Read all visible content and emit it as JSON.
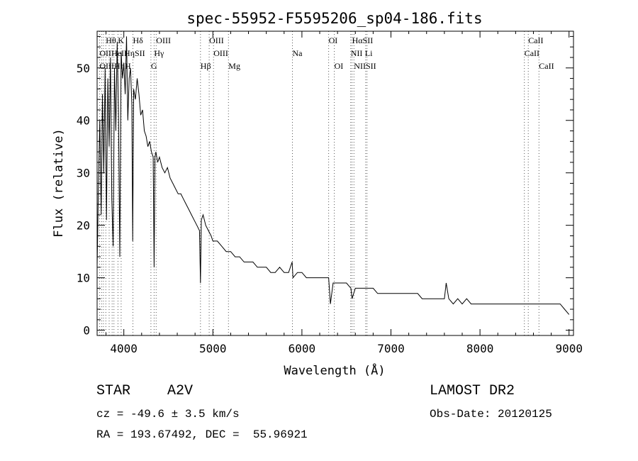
{
  "chart_data": {
    "type": "line",
    "title": "spec-55952-F5595206_sp04-186.fits",
    "xlabel": "Wavelength (Å)",
    "ylabel": "Flux (relative)",
    "xlim": [
      3700,
      9050
    ],
    "ylim": [
      -1,
      57
    ],
    "x_ticks": [
      4000,
      5000,
      6000,
      7000,
      8000,
      9000
    ],
    "y_ticks": [
      0,
      10,
      20,
      30,
      40,
      50
    ],
    "grid": false,
    "legend": "none",
    "line_color": "#000000",
    "series": [
      {
        "x": [
          3700,
          3715,
          3730,
          3745,
          3760,
          3775,
          3790,
          3805,
          3820,
          3835,
          3850,
          3865,
          3880,
          3895,
          3910,
          3925,
          3940,
          3955,
          3970,
          3985,
          4000,
          4015,
          4030,
          4045,
          4060,
          4075,
          4090,
          4100,
          4110,
          4130,
          4150,
          4170,
          4190,
          4210,
          4230,
          4250,
          4270,
          4290,
          4310,
          4330,
          4340,
          4350,
          4360,
          4380,
          4400,
          4430,
          4460,
          4490,
          4520,
          4550,
          4580,
          4610,
          4640,
          4670,
          4700,
          4730,
          4760,
          4790,
          4820,
          4850,
          4861,
          4870,
          4890,
          4920,
          4950,
          4980,
          5000,
          5050,
          5100,
          5150,
          5200,
          5250,
          5300,
          5350,
          5400,
          5450,
          5500,
          5550,
          5600,
          5650,
          5700,
          5750,
          5800,
          5850,
          5890,
          5900,
          5950,
          6000,
          6050,
          6100,
          6150,
          6200,
          6250,
          6300,
          6320,
          6350,
          6400,
          6450,
          6500,
          6550,
          6563,
          6600,
          6650,
          6700,
          6750,
          6800,
          6850,
          6900,
          6950,
          7000,
          7050,
          7100,
          7150,
          7200,
          7250,
          7300,
          7350,
          7400,
          7450,
          7500,
          7550,
          7600,
          7620,
          7650,
          7700,
          7750,
          7800,
          7850,
          7900,
          7950,
          8000,
          8050,
          8100,
          8150,
          8200,
          8250,
          8300,
          8350,
          8400,
          8450,
          8500,
          8550,
          8600,
          8650,
          8700,
          8750,
          8800,
          8850,
          8900,
          8950,
          9000
        ],
        "y": [
          12,
          28,
          40,
          22,
          45,
          30,
          50,
          21,
          48,
          35,
          52,
          25,
          16,
          50,
          38,
          55,
          42,
          14,
          53,
          48,
          51,
          45,
          56,
          40,
          48,
          50,
          43,
          17,
          46,
          44,
          48,
          45,
          41,
          42,
          38,
          37,
          35,
          36,
          34,
          33,
          12,
          33,
          34,
          32,
          33,
          31,
          30,
          31,
          29,
          28,
          27,
          26,
          26,
          25,
          24,
          23,
          22,
          21,
          20,
          19,
          9,
          21,
          22,
          20,
          19,
          18,
          17,
          17,
          16,
          15,
          15,
          14,
          14,
          13,
          13,
          13,
          12,
          12,
          12,
          11,
          11,
          12,
          11,
          11,
          13,
          10,
          11,
          11,
          10,
          10,
          10,
          10,
          10,
          10,
          5,
          9,
          9,
          9,
          9,
          8,
          6,
          8,
          8,
          8,
          8,
          8,
          7,
          7,
          7,
          7,
          7,
          7,
          7,
          7,
          7,
          7,
          6,
          6,
          6,
          6,
          6,
          6,
          9,
          6,
          5,
          6,
          5,
          6,
          5,
          5,
          5,
          5,
          5,
          5,
          5,
          5,
          5,
          5,
          5,
          5,
          5,
          5,
          5,
          5,
          5,
          5,
          5,
          5,
          5,
          4,
          3
        ]
      }
    ],
    "line_markers": [
      {
        "label": "Hθ",
        "x": 3798,
        "row": 0
      },
      {
        "label": "K",
        "x": 3934,
        "row": 0
      },
      {
        "label": "Hδ",
        "x": 4102,
        "row": 0
      },
      {
        "label": "OIII",
        "x": 4363,
        "row": 0
      },
      {
        "label": "OIII",
        "x": 4959,
        "row": 0
      },
      {
        "label": "OI",
        "x": 6300,
        "row": 0
      },
      {
        "label": "HαSII",
        "x": 6563,
        "row": 0
      },
      {
        "label": "CaII",
        "x": 8542,
        "row": 0
      },
      {
        "label": "OIIHeIHηSII",
        "x": 3727,
        "row": 1
      },
      {
        "label": "Hγ",
        "x": 4340,
        "row": 1
      },
      {
        "label": "OIII",
        "x": 5007,
        "row": 1
      },
      {
        "label": "Na",
        "x": 5893,
        "row": 1
      },
      {
        "label": "NII",
        "x": 6548,
        "row": 1
      },
      {
        "label": "Li",
        "x": 6708,
        "row": 1
      },
      {
        "label": "CaII",
        "x": 8498,
        "row": 1
      },
      {
        "label": "OIIIHηH",
        "x": 3727,
        "row": 2
      },
      {
        "label": "G",
        "x": 4304,
        "row": 2
      },
      {
        "label": "Hβ",
        "x": 4861,
        "row": 2
      },
      {
        "label": "Mg",
        "x": 5175,
        "row": 2
      },
      {
        "label": "OI",
        "x": 6364,
        "row": 2
      },
      {
        "label": "NIISII",
        "x": 6584,
        "row": 2
      },
      {
        "label": "CaII",
        "x": 8662,
        "row": 2
      }
    ],
    "marker_lines_x": [
      3727,
      3750,
      3771,
      3798,
      3835,
      3869,
      3889,
      3934,
      3970,
      4102,
      4304,
      4340,
      4363,
      4861,
      4959,
      5007,
      5175,
      5893,
      6300,
      6364,
      6548,
      6563,
      6584,
      6716,
      6731,
      8498,
      8542,
      8662
    ]
  },
  "info": {
    "object_class": "STAR",
    "subclass": "A2V",
    "survey": "LAMOST DR2",
    "cz": "cz = -49.6 ± 3.5 km/s",
    "obs_date": "Obs-Date: 20120125",
    "coords": "RA = 193.67492, DEC =  55.96921"
  }
}
